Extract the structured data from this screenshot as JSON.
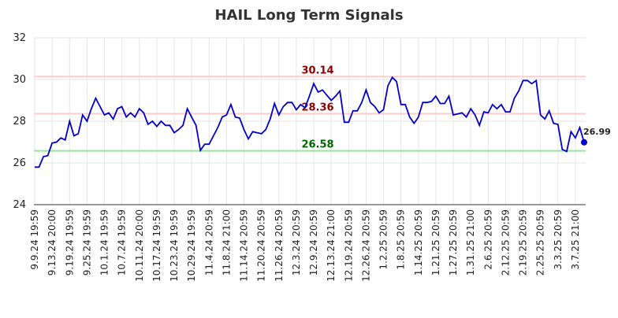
{
  "chart_data": {
    "type": "line",
    "title": "HAIL Long Term Signals",
    "categories": [
      "9.9.24 19:59",
      null,
      null,
      null,
      "9.13.24 20:00",
      null,
      null,
      null,
      "9.19.24 19:59",
      null,
      null,
      null,
      "9.25.24 19:59",
      null,
      null,
      null,
      "10.1.24 19:59",
      null,
      null,
      null,
      "10.7.24 19:59",
      null,
      null,
      null,
      "10.11.24 20:00",
      null,
      null,
      null,
      "10.17.24 19:59",
      null,
      null,
      null,
      "10.23.24 19:59",
      null,
      null,
      null,
      "10.29.24 19:59",
      null,
      null,
      null,
      "11.4.24 20:59",
      null,
      null,
      null,
      "11.8.24 21:00",
      null,
      null,
      null,
      "11.14.24 20:59",
      null,
      null,
      null,
      "11.20.24 20:59",
      null,
      null,
      null,
      "11.26.24 20:59",
      null,
      null,
      null,
      "12.3.24 20:59",
      null,
      null,
      null,
      "12.9.24 20:59",
      null,
      null,
      null,
      "12.13.24 21:00",
      null,
      null,
      null,
      "12.19.24 20:59",
      null,
      null,
      null,
      "12.26.24 20:59",
      null,
      null,
      null,
      "1.2.25 20:59",
      null,
      null,
      null,
      "1.8.25 20:59",
      null,
      null,
      null,
      "1.14.25 20:59",
      null,
      null,
      null,
      "1.21.25 20:59",
      null,
      null,
      null,
      "1.27.25 20:59",
      null,
      null,
      null,
      "1.31.25 21:00",
      null,
      null,
      null,
      "2.6.25 20:59",
      null,
      null,
      null,
      "2.12.25 20:59",
      null,
      null,
      null,
      "2.19.25 20:59",
      null,
      null,
      null,
      "2.25.25 20:59",
      null,
      null,
      null,
      "3.3.25 20:59",
      null,
      null,
      null,
      "3.7.25 21:00",
      null,
      null
    ],
    "values": [
      25.8,
      25.8,
      26.3,
      26.35,
      26.95,
      27.0,
      27.2,
      27.1,
      28.0,
      27.3,
      27.4,
      28.3,
      28.0,
      28.6,
      29.1,
      28.7,
      28.3,
      28.4,
      28.1,
      28.6,
      28.7,
      28.2,
      28.4,
      28.2,
      28.6,
      28.4,
      27.85,
      28.0,
      27.75,
      28.0,
      27.8,
      27.8,
      27.45,
      27.6,
      27.8,
      28.6,
      28.2,
      27.8,
      26.6,
      26.9,
      26.9,
      27.3,
      27.7,
      28.2,
      28.3,
      28.8,
      28.2,
      28.15,
      27.6,
      27.15,
      27.5,
      27.45,
      27.4,
      27.6,
      28.1,
      28.85,
      28.3,
      28.7,
      28.9,
      28.9,
      28.55,
      28.8,
      28.65,
      29.2,
      29.8,
      29.4,
      29.5,
      29.25,
      29.0,
      29.2,
      29.45,
      27.95,
      27.95,
      28.5,
      28.5,
      28.9,
      29.5,
      28.9,
      28.7,
      28.4,
      28.55,
      29.7,
      30.1,
      29.9,
      28.8,
      28.8,
      28.2,
      27.9,
      28.2,
      28.9,
      28.9,
      28.95,
      29.2,
      28.85,
      28.85,
      29.2,
      28.3,
      28.35,
      28.4,
      28.2,
      28.6,
      28.3,
      27.8,
      28.45,
      28.4,
      28.8,
      28.6,
      28.8,
      28.45,
      28.45,
      29.1,
      29.45,
      29.95,
      29.95,
      29.8,
      29.95,
      28.3,
      28.1,
      28.5,
      27.9,
      27.85,
      26.65,
      26.55,
      27.5,
      27.2,
      27.7,
      26.99
    ],
    "color": "#0000cc",
    "hlines": [
      {
        "value": 30.14,
        "color": "#ffcccc",
        "label_color": "#8b0000"
      },
      {
        "value": 28.36,
        "color": "#ffcccc",
        "label_color": "#8b0000"
      },
      {
        "value": 26.58,
        "color": "#99e699",
        "label_color": "#006400"
      }
    ],
    "ylim": [
      24,
      32
    ],
    "yticks": [
      24,
      26,
      28,
      30,
      32
    ],
    "grid": true
  }
}
